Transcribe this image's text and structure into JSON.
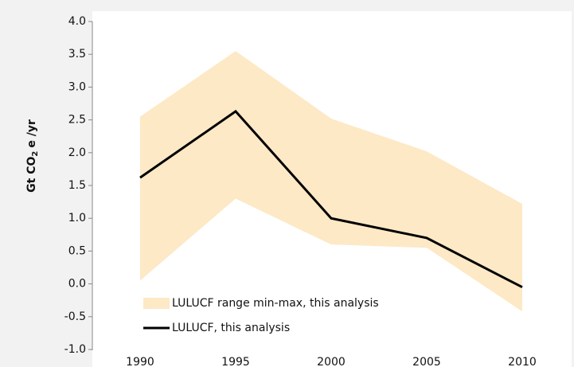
{
  "chart_data": {
    "type": "line",
    "y_label": {
      "text": "Gt CO",
      "sub": "2",
      "rest": "e /yr"
    },
    "categories": [
      "1990",
      "1995",
      "2000",
      "2005",
      "2010"
    ],
    "series": [
      {
        "name": "LULUCF range min-max, this analysis",
        "color": "#fde9c6",
        "kind": "range",
        "low": [
          0.05,
          1.3,
          0.6,
          0.55,
          -0.42
        ],
        "high": [
          2.55,
          3.55,
          2.52,
          2.02,
          1.22
        ]
      },
      {
        "name": "LULUCF, this analysis",
        "color": "#000000",
        "values": [
          1.62,
          2.63,
          1.0,
          0.7,
          -0.05
        ]
      }
    ],
    "ylim": [
      -1.0,
      4.0
    ],
    "yticks": [
      {
        "value": -1,
        "label": "-1.0"
      },
      -0.5,
      {
        "value": 0,
        "label": "0.0"
      },
      0.5,
      {
        "value": 1,
        "label": "1.0"
      },
      1.5,
      {
        "value": 2,
        "label": "2.0"
      },
      2.5,
      {
        "value": 3,
        "label": "3.0"
      },
      3.5,
      {
        "value": 4,
        "label": "4.0"
      }
    ]
  }
}
